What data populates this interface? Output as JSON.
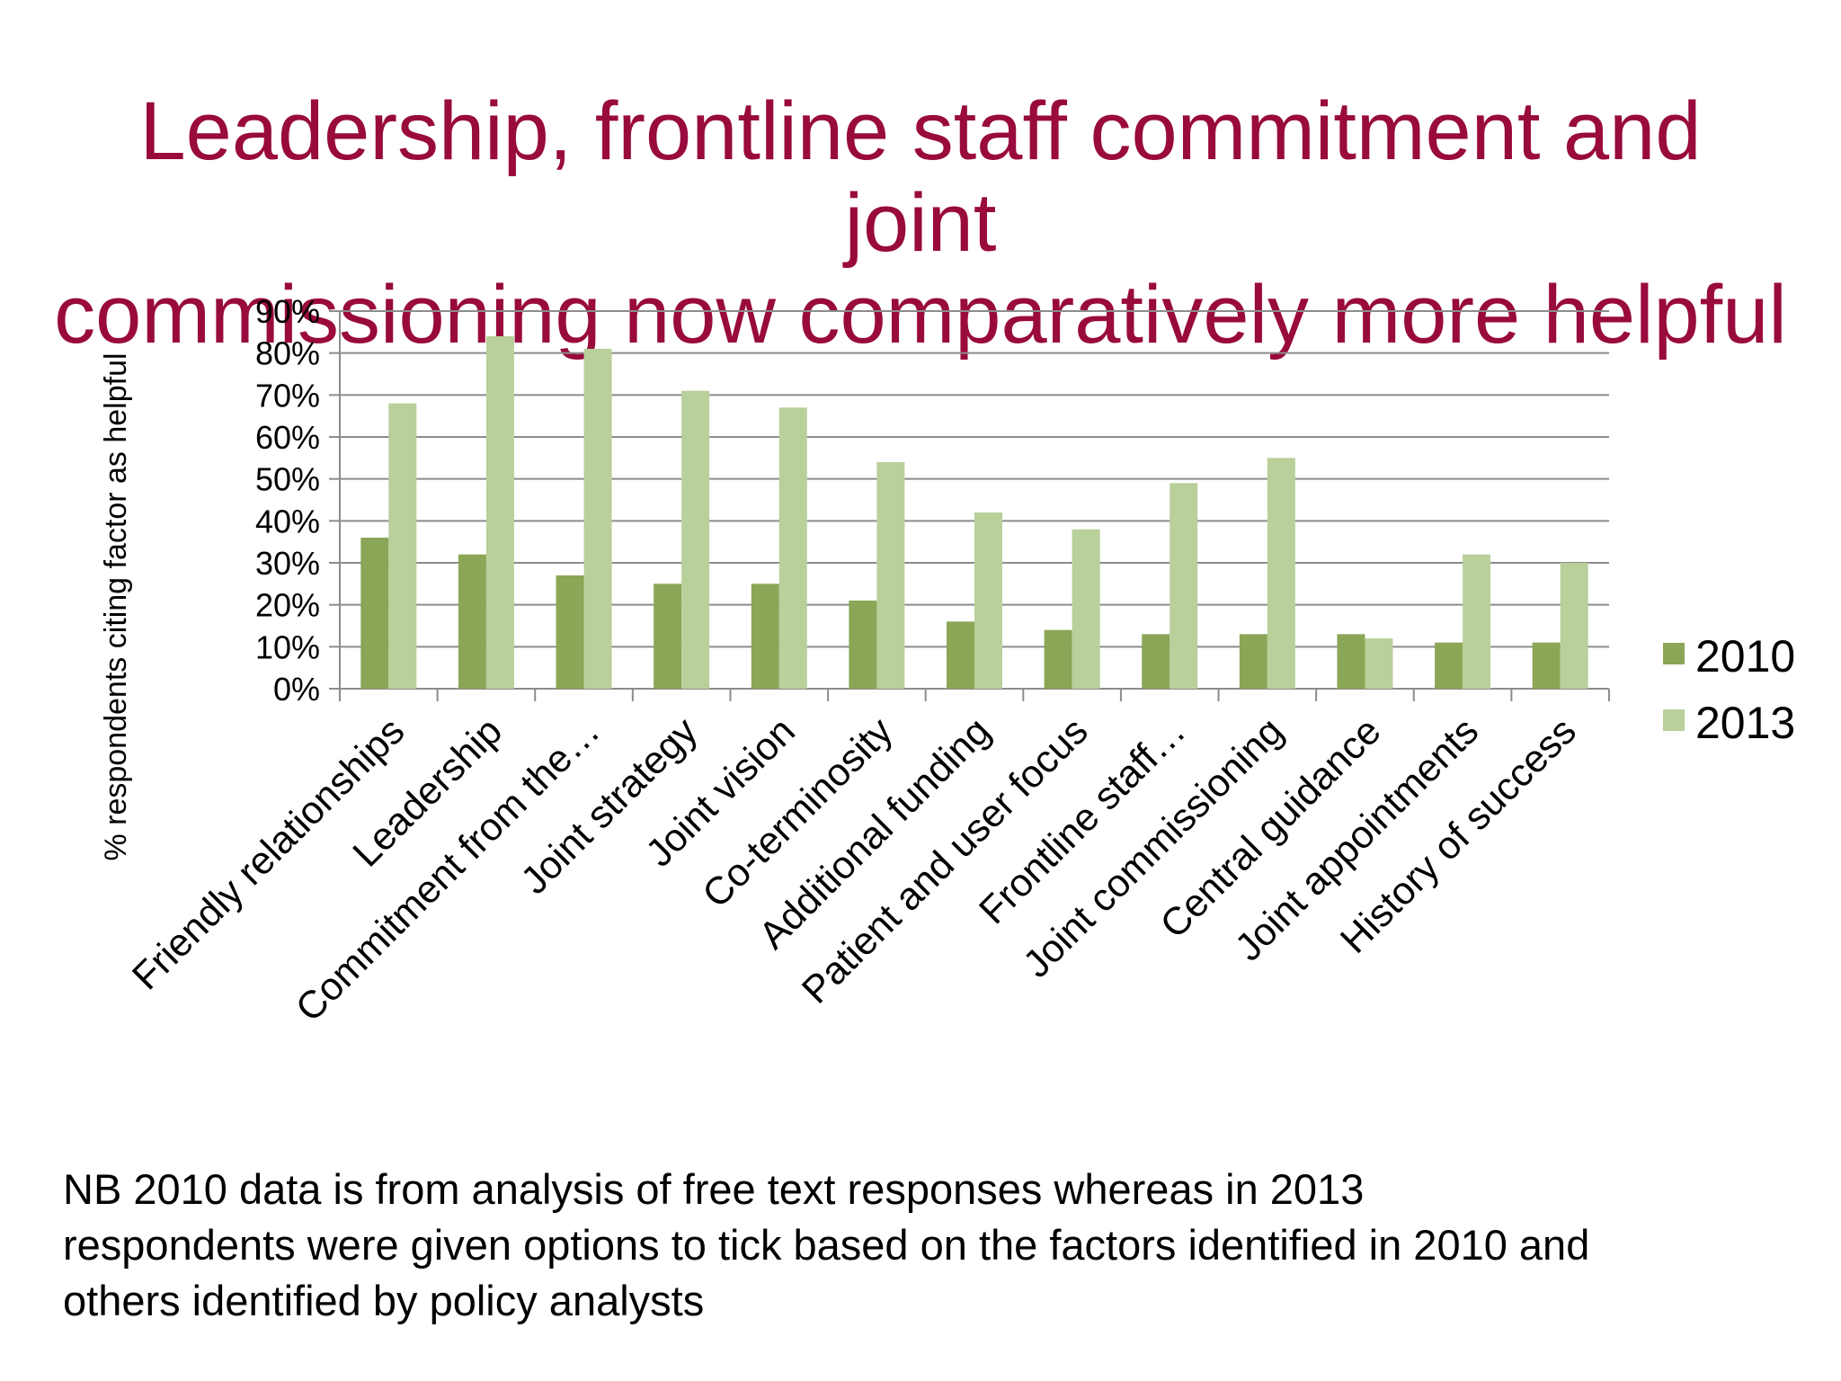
{
  "title": {
    "line1": "Leadership, frontline staff commitment and joint",
    "line2": "commissioning now comparatively more helpful"
  },
  "footnote": {
    "line1": "NB  2010 data is from analysis of free text responses whereas in 2013",
    "line2": "respondents were given options to tick based on the factors identified in 2010 and",
    "line3": "others identified by policy analysts"
  },
  "colors": {
    "title": "#990a3d",
    "series_2010": "#8aa656",
    "series_2013": "#b9d09a",
    "gridline": "#8c8c8c",
    "axis": "#8c8c8c"
  },
  "chart_data": {
    "type": "bar",
    "title": "",
    "xlabel": "",
    "ylabel": "% respondents citing factor as helpful",
    "ylim": [
      0,
      90
    ],
    "yticks": [
      "0%",
      "10%",
      "20%",
      "30%",
      "40%",
      "50%",
      "60%",
      "70%",
      "80%",
      "90%"
    ],
    "grid": true,
    "legend_position": "right",
    "categories": [
      "Friendly relationships",
      "Leadership",
      "Commitment from the…",
      "Joint strategy",
      "Joint vision",
      "Co-terminosity",
      "Additional funding",
      "Patient and user focus",
      "Frontline staff…",
      "Joint commissioning",
      "Central guidance",
      "Joint appointments",
      "History of success"
    ],
    "series": [
      {
        "name": "2010",
        "values": [
          36,
          32,
          27,
          25,
          25,
          21,
          16,
          14,
          13,
          13,
          13,
          11,
          11
        ]
      },
      {
        "name": "2013",
        "values": [
          68,
          84,
          81,
          71,
          67,
          54,
          42,
          38,
          49,
          55,
          12,
          32,
          30
        ]
      }
    ]
  }
}
